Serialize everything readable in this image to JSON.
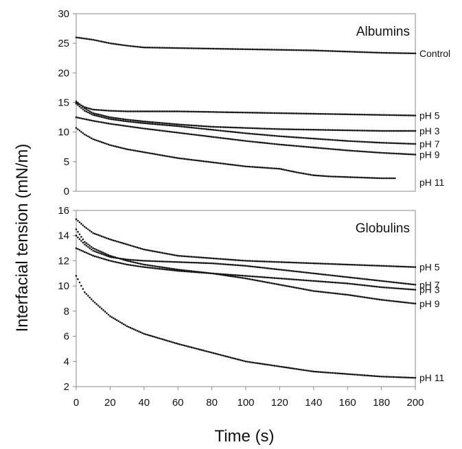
{
  "chart_data": [
    {
      "type": "line",
      "title": "Albumins",
      "xlabel": "",
      "ylabel": "",
      "xlim": [
        0,
        200
      ],
      "ylim": [
        0,
        30
      ],
      "x_ticks": [],
      "y_ticks": [
        0,
        5,
        10,
        15,
        20,
        25,
        30
      ],
      "grid": false,
      "series": [
        {
          "name": "Control",
          "x": [
            0,
            10,
            20,
            30,
            40,
            60,
            80,
            100,
            120,
            140,
            160,
            180,
            200
          ],
          "values": [
            26.0,
            25.6,
            25.0,
            24.6,
            24.3,
            24.2,
            24.1,
            24.0,
            23.9,
            23.8,
            23.6,
            23.4,
            23.3
          ]
        },
        {
          "name": "pH 5",
          "x": [
            0,
            5,
            10,
            20,
            30,
            40,
            60,
            80,
            100,
            120,
            140,
            160,
            180,
            200
          ],
          "values": [
            15.0,
            14.2,
            13.8,
            13.6,
            13.5,
            13.5,
            13.5,
            13.4,
            13.3,
            13.2,
            13.1,
            13.0,
            12.9,
            12.8
          ]
        },
        {
          "name": "pH 3",
          "x": [
            0,
            5,
            10,
            20,
            30,
            40,
            60,
            80,
            100,
            120,
            140,
            160,
            180,
            200
          ],
          "values": [
            15.2,
            14.0,
            13.2,
            12.5,
            12.1,
            11.8,
            11.3,
            10.9,
            10.7,
            10.5,
            10.4,
            10.3,
            10.2,
            10.2
          ]
        },
        {
          "name": "pH 7",
          "x": [
            0,
            5,
            10,
            20,
            30,
            40,
            60,
            80,
            100,
            120,
            140,
            160,
            180,
            200
          ],
          "values": [
            14.8,
            13.6,
            12.9,
            12.2,
            11.8,
            11.5,
            11.0,
            10.4,
            9.8,
            9.3,
            8.9,
            8.5,
            8.2,
            8.0
          ]
        },
        {
          "name": "pH 9",
          "x": [
            0,
            5,
            10,
            20,
            30,
            40,
            60,
            80,
            100,
            120,
            140,
            160,
            180,
            200
          ],
          "values": [
            12.5,
            12.2,
            11.9,
            11.4,
            11.0,
            10.6,
            9.9,
            9.2,
            8.5,
            7.9,
            7.4,
            6.9,
            6.5,
            6.2
          ]
        },
        {
          "name": "pH 11",
          "x": [
            0,
            5,
            10,
            20,
            30,
            40,
            60,
            80,
            100,
            120,
            130,
            140,
            150,
            160,
            170,
            180,
            188
          ],
          "values": [
            10.7,
            9.6,
            8.8,
            7.8,
            7.1,
            6.6,
            5.6,
            4.9,
            4.2,
            3.8,
            3.2,
            2.7,
            2.5,
            2.4,
            2.3,
            2.2,
            2.2
          ]
        }
      ]
    },
    {
      "type": "line",
      "title": "Globulins",
      "xlabel": "Time (s)",
      "ylabel": "Interfacial tension (mN/m)",
      "xlim": [
        0,
        200
      ],
      "ylim": [
        2,
        16
      ],
      "x_ticks": [
        0,
        20,
        40,
        60,
        80,
        100,
        120,
        140,
        160,
        180,
        200
      ],
      "y_ticks": [
        2,
        4,
        6,
        8,
        10,
        12,
        14,
        16
      ],
      "grid": false,
      "series": [
        {
          "name": "pH 5",
          "x": [
            0,
            5,
            10,
            20,
            30,
            40,
            60,
            80,
            100,
            120,
            140,
            160,
            180,
            200
          ],
          "values": [
            15.3,
            14.7,
            14.2,
            13.7,
            13.3,
            12.9,
            12.4,
            12.2,
            12.0,
            11.9,
            11.8,
            11.7,
            11.6,
            11.5
          ]
        },
        {
          "name": "pH 7",
          "x": [
            0,
            5,
            10,
            20,
            30,
            40,
            60,
            80,
            100,
            120,
            140,
            160,
            180,
            200
          ],
          "values": [
            14.0,
            13.3,
            12.8,
            12.3,
            12.1,
            12.0,
            11.9,
            11.8,
            11.6,
            11.3,
            11.0,
            10.7,
            10.4,
            10.1
          ]
        },
        {
          "name": "pH 3",
          "x": [
            0,
            5,
            10,
            20,
            30,
            40,
            60,
            80,
            100,
            120,
            140,
            160,
            180,
            200
          ],
          "values": [
            13.0,
            12.7,
            12.4,
            12.0,
            11.7,
            11.5,
            11.2,
            11.0,
            10.8,
            10.6,
            10.4,
            10.2,
            9.9,
            9.7
          ]
        },
        {
          "name": "pH 9",
          "x": [
            0,
            5,
            10,
            20,
            30,
            40,
            60,
            80,
            100,
            120,
            140,
            160,
            180,
            200
          ],
          "values": [
            14.5,
            13.5,
            13.0,
            12.4,
            12.0,
            11.7,
            11.3,
            11.0,
            10.6,
            10.1,
            9.6,
            9.3,
            8.9,
            8.6
          ]
        },
        {
          "name": "pH 11",
          "x": [
            0,
            5,
            10,
            20,
            30,
            40,
            60,
            80,
            100,
            120,
            140,
            160,
            180,
            200
          ],
          "values": [
            10.8,
            9.5,
            8.8,
            7.6,
            6.8,
            6.2,
            5.4,
            4.7,
            4.0,
            3.6,
            3.2,
            3.0,
            2.8,
            2.7
          ]
        }
      ]
    }
  ]
}
